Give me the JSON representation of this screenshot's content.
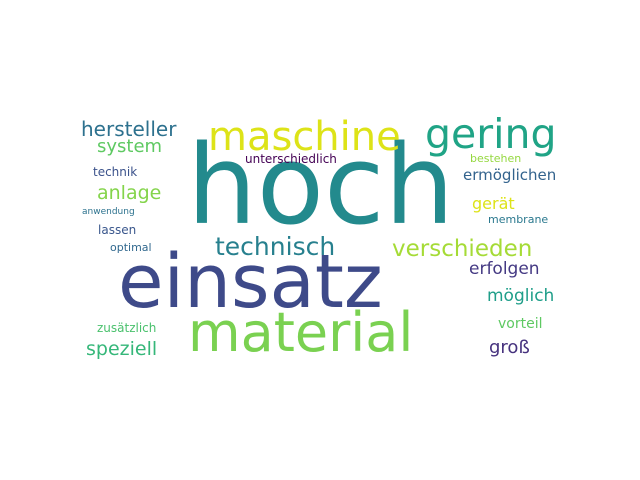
{
  "words": [
    {
      "text": "hoch",
      "color": "#238a8d"
    },
    {
      "text": "einsatz",
      "color": "#3e4a89"
    },
    {
      "text": "material",
      "color": "#7ad151"
    },
    {
      "text": "maschine",
      "color": "#dde318"
    },
    {
      "text": "gering",
      "color": "#20a486"
    },
    {
      "text": "technisch",
      "color": "#27808e"
    },
    {
      "text": "verschieden",
      "color": "#a5db36"
    },
    {
      "text": "hersteller",
      "color": "#2d718e"
    },
    {
      "text": "system",
      "color": "#5ec962"
    },
    {
      "text": "anlage",
      "color": "#84d44b"
    },
    {
      "text": "technik",
      "color": "#3b528b"
    },
    {
      "text": "anwendung",
      "color": "#2c728e"
    },
    {
      "text": "lassen",
      "color": "#39568c"
    },
    {
      "text": "optimal",
      "color": "#31688e"
    },
    {
      "text": "zusätzlich",
      "color": "#4ac16d"
    },
    {
      "text": "speziell",
      "color": "#35b779"
    },
    {
      "text": "unterschiedlich",
      "color": "#440154"
    },
    {
      "text": "bestehen",
      "color": "#95d840"
    },
    {
      "text": "ermöglichen",
      "color": "#33638d"
    },
    {
      "text": "gerät",
      "color": "#dde318"
    },
    {
      "text": "membrane",
      "color": "#2a788e"
    },
    {
      "text": "erfolgen",
      "color": "#443983"
    },
    {
      "text": "möglich",
      "color": "#1f9e89"
    },
    {
      "text": "vorteil",
      "color": "#5ec962"
    },
    {
      "text": "groß",
      "color": "#46327e"
    }
  ]
}
